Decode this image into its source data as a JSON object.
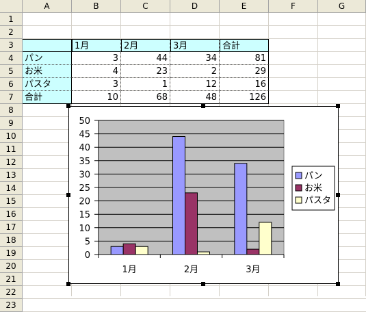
{
  "spreadsheet": {
    "columns": [
      "A",
      "B",
      "C",
      "D",
      "E",
      "F",
      "G"
    ],
    "rows": [
      "1",
      "2",
      "3",
      "4",
      "5",
      "6",
      "7",
      "8",
      "9",
      "10",
      "11",
      "12",
      "13",
      "14",
      "15",
      "16",
      "17",
      "18",
      "19",
      "20",
      "21",
      "22",
      "23"
    ],
    "table": {
      "header": [
        "",
        "1月",
        "2月",
        "3月",
        "合計"
      ],
      "body": [
        [
          "パン",
          "3",
          "44",
          "34",
          "81"
        ],
        [
          "お米",
          "4",
          "23",
          "2",
          "29"
        ],
        [
          "パスタ",
          "3",
          "1",
          "12",
          "16"
        ],
        [
          "合計",
          "10",
          "68",
          "48",
          "126"
        ]
      ]
    }
  },
  "chart_data": {
    "type": "bar",
    "categories": [
      "1月",
      "2月",
      "3月"
    ],
    "series": [
      {
        "name": "パン",
        "values": [
          3,
          44,
          34
        ],
        "color": "#9999ff"
      },
      {
        "name": "お米",
        "values": [
          4,
          23,
          2
        ],
        "color": "#993366"
      },
      {
        "name": "パスタ",
        "values": [
          3,
          1,
          12
        ],
        "color": "#ffffcc"
      }
    ],
    "ylim": [
      0,
      50
    ],
    "yticks": [
      0,
      5,
      10,
      15,
      20,
      25,
      30,
      35,
      40,
      45,
      50
    ],
    "grid": true,
    "plot_background": "#c0c0c0",
    "legend_position": "right",
    "title": "",
    "xlabel": "",
    "ylabel": ""
  }
}
